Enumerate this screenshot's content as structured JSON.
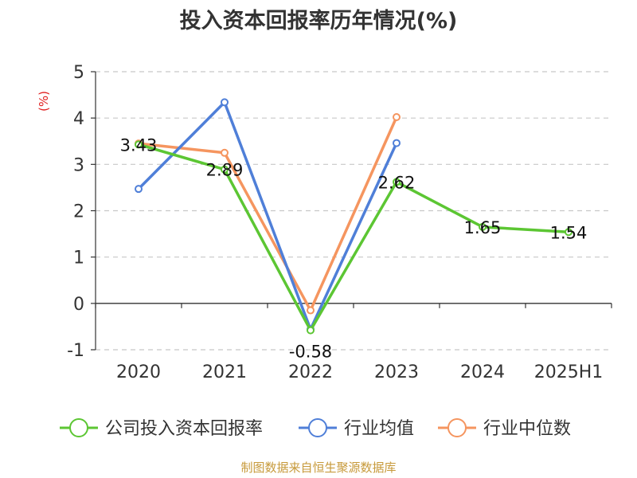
{
  "chart_data": {
    "type": "line",
    "title": "投入资本回报率历年情况(%)",
    "ylabel": "(%)",
    "categories": [
      "2020",
      "2021",
      "2022",
      "2023",
      "2024",
      "2025H1"
    ],
    "ylim": [
      -1,
      5
    ],
    "yticks": [
      5,
      4,
      3,
      2,
      1,
      0,
      -1
    ],
    "grid": true,
    "legend_placement": "bottom",
    "series": [
      {
        "name": "公司投入资本回报率",
        "color": "#5cc633",
        "values": [
          3.43,
          2.89,
          -0.58,
          2.62,
          1.65,
          1.54
        ],
        "labels": [
          "3.43",
          "2.89",
          "-0.58",
          "2.62",
          "1.65",
          "1.54"
        ]
      },
      {
        "name": "行业均值",
        "color": "#4f7fd8",
        "values": [
          2.47,
          4.34,
          -0.56,
          3.46,
          null,
          null
        ]
      },
      {
        "name": "行业中位数",
        "color": "#f5955f",
        "values": [
          3.45,
          3.25,
          -0.15,
          4.02,
          null,
          null
        ]
      }
    ]
  },
  "source_text": "制图数据来自恒生聚源数据库"
}
